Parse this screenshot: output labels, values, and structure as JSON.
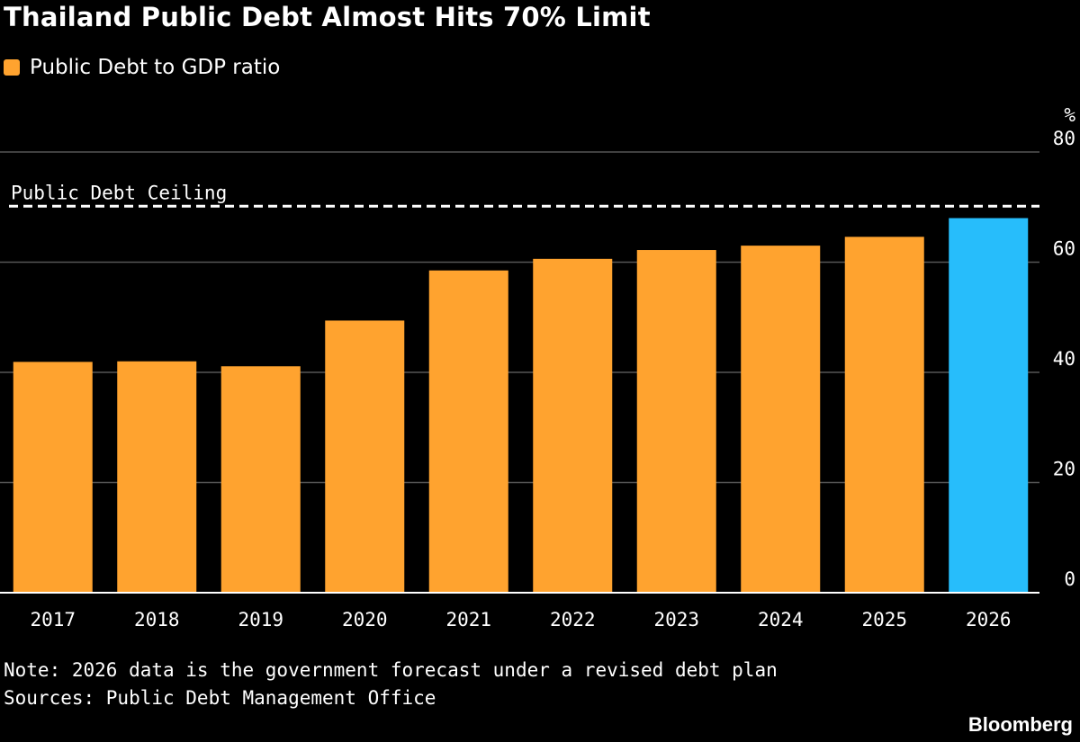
{
  "title": "Thailand Public Debt Almost Hits 70% Limit",
  "legend": {
    "label": "Public Debt to GDP ratio",
    "color": "#ffa32f"
  },
  "note": "Note: 2026 data is the government forecast under a revised debt plan",
  "sources": "Sources: Public Debt Management Office",
  "brand": "Bloomberg",
  "chart_data": {
    "type": "bar",
    "categories": [
      "2017",
      "2018",
      "2019",
      "2020",
      "2021",
      "2022",
      "2023",
      "2024",
      "2025",
      "2026"
    ],
    "series": [
      {
        "name": "Public Debt to GDP ratio",
        "values": [
          41.9,
          42.0,
          41.1,
          49.4,
          58.5,
          60.6,
          62.2,
          63.0,
          64.6,
          68.0
        ]
      }
    ],
    "colors": {
      "actual": "#ffa32f",
      "forecast": "#27bdfb",
      "gridline": "#555555",
      "ceiling": "#ffffff"
    },
    "highlight_categories": [
      "2026"
    ],
    "ylabel": "%",
    "ylim": [
      0,
      80
    ],
    "yticks": [
      0,
      20,
      40,
      60,
      80
    ],
    "reference_line": {
      "label": "Public Debt Ceiling",
      "value": 70
    },
    "grid": true,
    "y_axis_side": "right"
  }
}
